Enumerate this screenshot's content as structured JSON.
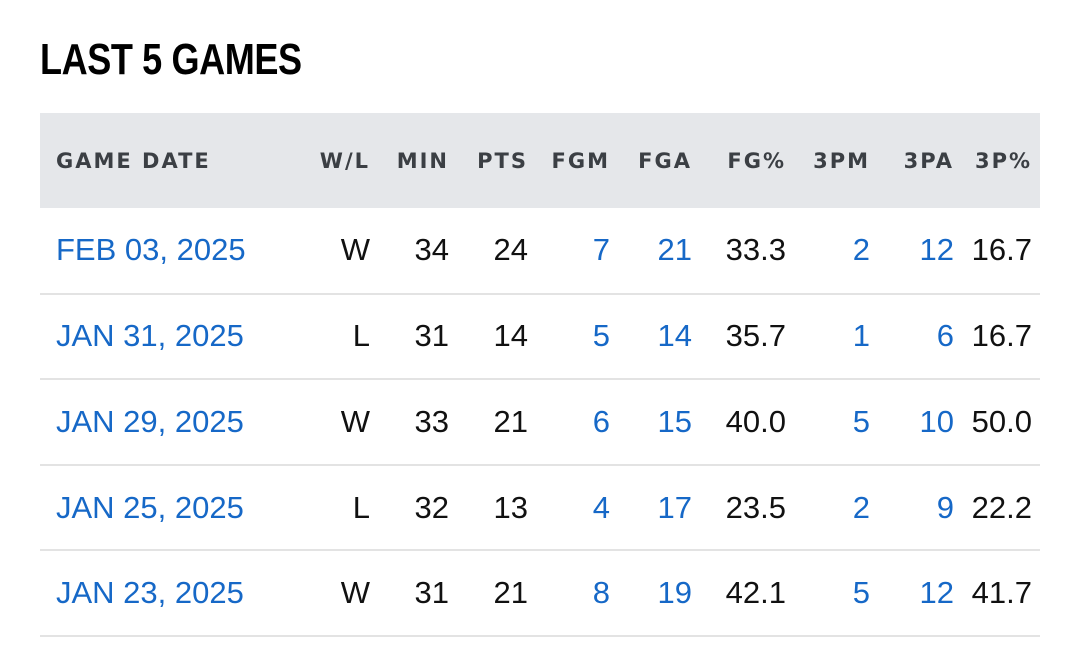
{
  "section": {
    "title": "LAST 5 GAMES"
  },
  "table": {
    "columns": [
      "GAME DATE",
      "W/L",
      "MIN",
      "PTS",
      "FGM",
      "FGA",
      "FG%",
      "3PM",
      "3PA",
      "3P%"
    ],
    "rows": [
      {
        "game_date": "FEB 03, 2025",
        "wl": "W",
        "min": "34",
        "pts": "24",
        "fgm": "7",
        "fga": "21",
        "fg_pct": "33.3",
        "tpm": "2",
        "tpa": "12",
        "tp_pct": "16.7"
      },
      {
        "game_date": "JAN 31, 2025",
        "wl": "L",
        "min": "31",
        "pts": "14",
        "fgm": "5",
        "fga": "14",
        "fg_pct": "35.7",
        "tpm": "1",
        "tpa": "6",
        "tp_pct": "16.7"
      },
      {
        "game_date": "JAN 29, 2025",
        "wl": "W",
        "min": "33",
        "pts": "21",
        "fgm": "6",
        "fga": "15",
        "fg_pct": "40.0",
        "tpm": "5",
        "tpa": "10",
        "tp_pct": "50.0"
      },
      {
        "game_date": "JAN 25, 2025",
        "wl": "L",
        "min": "32",
        "pts": "13",
        "fgm": "4",
        "fga": "17",
        "fg_pct": "23.5",
        "tpm": "2",
        "tpa": "9",
        "tp_pct": "22.2"
      },
      {
        "game_date": "JAN 23, 2025",
        "wl": "W",
        "min": "31",
        "pts": "21",
        "fgm": "8",
        "fga": "19",
        "fg_pct": "42.1",
        "tpm": "5",
        "tpa": "12",
        "tp_pct": "41.7"
      }
    ]
  },
  "colors": {
    "link": "#1668c7",
    "header_bg": "#e5e7ea",
    "row_divider": "#e3e3e3"
  }
}
